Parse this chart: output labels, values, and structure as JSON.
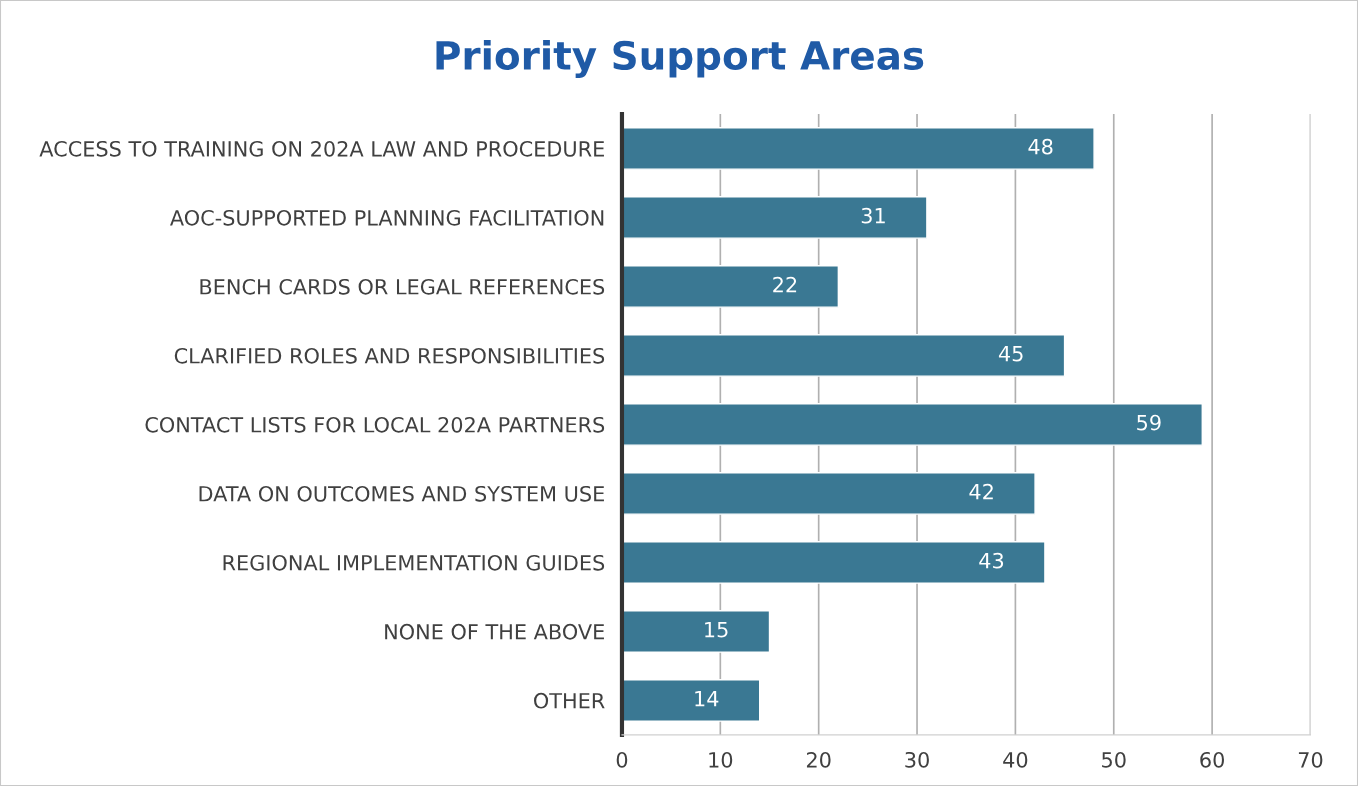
{
  "chart_data": {
    "type": "bar",
    "orientation": "horizontal",
    "title": "Priority Support Areas",
    "categories": [
      "ACCESS TO TRAINING ON 202A LAW AND PROCEDURE",
      "AOC-SUPPORTED PLANNING FACILITATION",
      "BENCH CARDS OR LEGAL REFERENCES",
      "CLARIFIED ROLES AND RESPONSIBILITIES",
      "CONTACT LISTS FOR LOCAL 202A PARTNERS",
      "DATA ON OUTCOMES AND SYSTEM USE",
      "REGIONAL IMPLEMENTATION GUIDES",
      "NONE OF THE ABOVE",
      "OTHER"
    ],
    "values": [
      48,
      31,
      22,
      45,
      59,
      42,
      43,
      15,
      14
    ],
    "color": "#3a7893",
    "xlim": [
      0,
      70
    ],
    "xticks": [
      0,
      10,
      20,
      30,
      40,
      50,
      60,
      70
    ],
    "grid": "x",
    "data_labels": true
  }
}
